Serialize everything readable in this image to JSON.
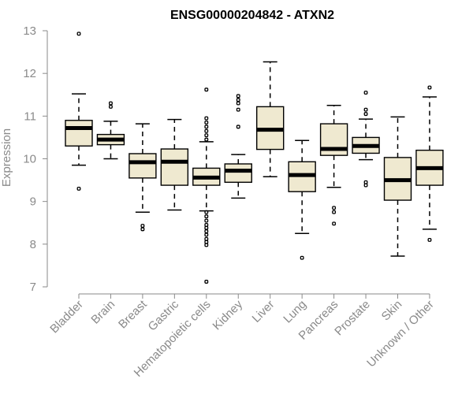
{
  "chart_data": {
    "type": "boxplot",
    "title": "ENSG00000204842 - ATXN2",
    "xlabel": "",
    "ylabel": "Expression",
    "ylim": [
      7,
      13
    ],
    "yticks": [
      "7",
      "8",
      "9",
      "10",
      "11",
      "12",
      "13"
    ],
    "categories": [
      "Bladder",
      "Brain",
      "Breast",
      "Gastric",
      "Hematopoietic cells",
      "Kidney",
      "Liver",
      "Lung",
      "Pancreas",
      "Prostate",
      "Skin",
      "Unknown / Other"
    ],
    "series": [
      {
        "name": "Bladder",
        "whisker_low": 9.85,
        "q1": 10.3,
        "median": 10.72,
        "q3": 10.9,
        "whisker_high": 11.52,
        "outliers": [
          12.93,
          9.3
        ]
      },
      {
        "name": "Brain",
        "whisker_low": 10.0,
        "q1": 10.33,
        "median": 10.45,
        "q3": 10.57,
        "whisker_high": 10.88,
        "outliers": [
          11.3,
          11.22
        ]
      },
      {
        "name": "Breast",
        "whisker_low": 8.75,
        "q1": 9.55,
        "median": 9.92,
        "q3": 10.12,
        "whisker_high": 10.82,
        "outliers": [
          8.43,
          8.35
        ]
      },
      {
        "name": "Gastric",
        "whisker_low": 8.8,
        "q1": 9.38,
        "median": 9.93,
        "q3": 10.23,
        "whisker_high": 10.92,
        "outliers": []
      },
      {
        "name": "Hematopoietic cells",
        "whisker_low": 8.78,
        "q1": 9.38,
        "median": 9.56,
        "q3": 9.78,
        "whisker_high": 10.4,
        "outliers": [
          11.62,
          10.95,
          10.85,
          10.75,
          10.65,
          10.55,
          10.45,
          8.75,
          8.65,
          8.55,
          8.45,
          8.38,
          8.3,
          8.22,
          8.12,
          8.05,
          7.98,
          7.12
        ]
      },
      {
        "name": "Kidney",
        "whisker_low": 9.08,
        "q1": 9.45,
        "median": 9.72,
        "q3": 9.88,
        "whisker_high": 10.1,
        "outliers": [
          11.47,
          11.38,
          11.3,
          11.15,
          10.75
        ]
      },
      {
        "name": "Liver",
        "whisker_low": 9.58,
        "q1": 10.22,
        "median": 10.68,
        "q3": 11.22,
        "whisker_high": 12.27,
        "outliers": []
      },
      {
        "name": "Lung",
        "whisker_low": 8.25,
        "q1": 9.23,
        "median": 9.62,
        "q3": 9.93,
        "whisker_high": 10.43,
        "outliers": [
          7.68
        ]
      },
      {
        "name": "Pancreas",
        "whisker_low": 9.33,
        "q1": 10.08,
        "median": 10.23,
        "q3": 10.82,
        "whisker_high": 11.25,
        "outliers": [
          8.85,
          8.75,
          8.48
        ]
      },
      {
        "name": "Prostate",
        "whisker_low": 9.98,
        "q1": 10.13,
        "median": 10.3,
        "q3": 10.5,
        "whisker_high": 10.93,
        "outliers": [
          11.55,
          11.15,
          11.05,
          9.45,
          9.38
        ]
      },
      {
        "name": "Skin",
        "whisker_low": 7.72,
        "q1": 9.03,
        "median": 9.5,
        "q3": 10.03,
        "whisker_high": 10.98,
        "outliers": []
      },
      {
        "name": "Unknown / Other",
        "whisker_low": 8.35,
        "q1": 9.38,
        "median": 9.78,
        "q3": 10.2,
        "whisker_high": 11.45,
        "outliers": [
          11.67,
          8.1
        ]
      }
    ],
    "grid": false,
    "legend": "none"
  }
}
